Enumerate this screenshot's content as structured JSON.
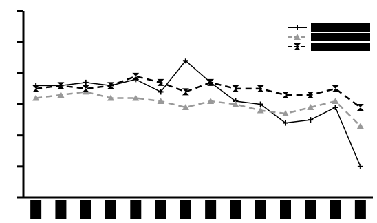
{
  "chart_data": {
    "type": "line",
    "title": "",
    "xlabel": "",
    "ylabel": "",
    "categories": [
      "",
      "",
      "",
      "",
      "",
      "",
      "",
      "",
      "",
      "",
      "",
      "",
      "",
      ""
    ],
    "ylim": [
      0,
      6
    ],
    "yticks": [
      0,
      1,
      2,
      3,
      4,
      5,
      6
    ],
    "grid": false,
    "legend_position": "top-right",
    "series": [
      {
        "color": "#000000",
        "marker": "plus",
        "dash": "solid",
        "values": [
          3.6,
          3.6,
          3.7,
          3.6,
          3.8,
          3.4,
          4.4,
          3.7,
          3.1,
          3.0,
          2.4,
          2.5,
          2.9,
          1.0
        ]
      },
      {
        "color": "#999999",
        "marker": "triangle",
        "dash": "dashed",
        "values": [
          3.2,
          3.3,
          3.4,
          3.2,
          3.2,
          3.1,
          2.9,
          3.1,
          3.0,
          2.8,
          2.7,
          2.9,
          3.1,
          2.3
        ]
      },
      {
        "color": "#000000",
        "marker": "bowtie",
        "dash": "dashed",
        "values": [
          3.5,
          3.6,
          3.5,
          3.6,
          3.9,
          3.7,
          3.4,
          3.7,
          3.5,
          3.5,
          3.3,
          3.3,
          3.5,
          2.9
        ]
      }
    ]
  }
}
